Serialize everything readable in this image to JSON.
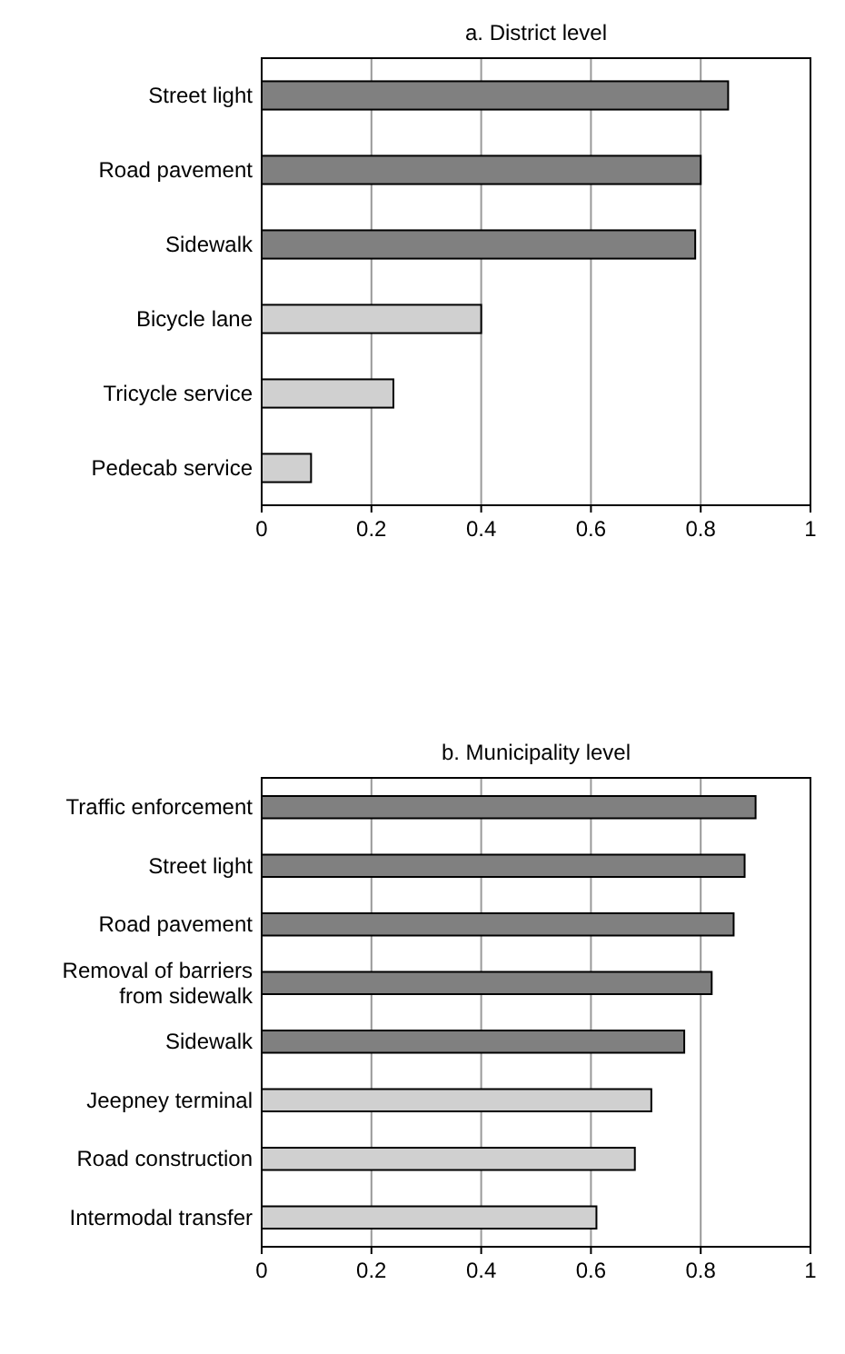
{
  "chart_data": [
    {
      "type": "bar",
      "orientation": "horizontal",
      "title": "a. District level",
      "categories": [
        "Street light",
        "Road pavement",
        "Sidewalk",
        "Bicycle lane",
        "Tricycle service",
        "Pedecab service"
      ],
      "values": [
        0.85,
        0.8,
        0.79,
        0.4,
        0.24,
        0.09
      ],
      "colors": [
        "#808080",
        "#808080",
        "#808080",
        "#d0d0d0",
        "#d0d0d0",
        "#d0d0d0"
      ],
      "xlim": [
        0,
        1
      ],
      "xticks": [
        0,
        0.2,
        0.4,
        0.6,
        0.8,
        1
      ],
      "grid": "x"
    },
    {
      "type": "bar",
      "orientation": "horizontal",
      "title": "b. Municipality level",
      "categories": [
        "Traffic enforcement",
        "Street light",
        "Road pavement",
        "Removal of barriers\nfrom sidewalk",
        "Sidewalk",
        "Jeepney terminal",
        "Road construction",
        "Intermodal transfer"
      ],
      "values": [
        0.9,
        0.88,
        0.86,
        0.82,
        0.77,
        0.71,
        0.68,
        0.61
      ],
      "colors": [
        "#808080",
        "#808080",
        "#808080",
        "#808080",
        "#808080",
        "#d0d0d0",
        "#d0d0d0",
        "#d0d0d0"
      ],
      "xlim": [
        0,
        1
      ],
      "xticks": [
        0,
        0.2,
        0.4,
        0.6,
        0.8,
        1
      ],
      "grid": "x"
    }
  ]
}
